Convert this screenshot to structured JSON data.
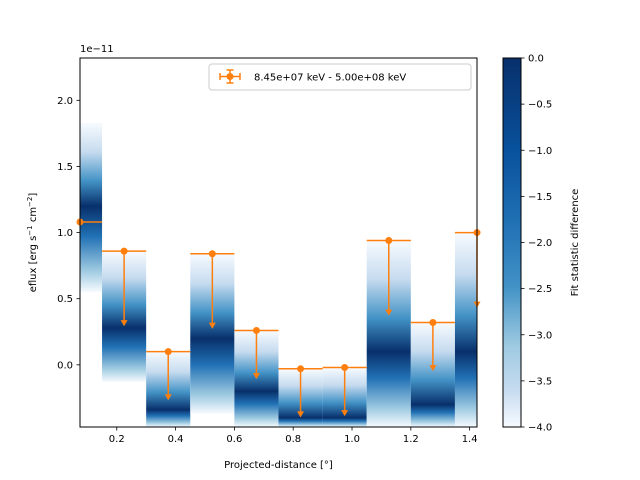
{
  "chart_data": {
    "type": "scatter",
    "subtype": "flux-profile-with-upper-limits",
    "scale_label": "1e−11",
    "xlabel": "Projected-distance [°]",
    "ylabel_prefix": "eflux [erg s",
    "ylabel_s_exp": "−1",
    "ylabel_mid": " cm",
    "ylabel_cm_exp": "−2",
    "ylabel_suffix": "]",
    "xlim": [
      0.075,
      1.425
    ],
    "ylim": [
      -0.47,
      2.32
    ],
    "x_ticks": [
      0.2,
      0.4,
      0.6,
      0.8,
      1.0,
      1.2,
      1.4
    ],
    "x_tick_labels": [
      "0.2",
      "0.4",
      "0.6",
      "0.8",
      "1.0",
      "1.2",
      "1.4"
    ],
    "y_ticks": [
      0.0,
      0.5,
      1.0,
      1.5,
      2.0
    ],
    "y_tick_labels": [
      "0.0",
      "0.5",
      "1.0",
      "1.5",
      "2.0"
    ],
    "legend": {
      "label": "8.45e+07 keV - 5.00e+08 keV",
      "location": "upper right",
      "color": "#ff7f0e"
    },
    "series": [
      {
        "name": "8.45e+07 keV - 5.00e+08 keV",
        "color": "#ff7f0e",
        "points": [
          {
            "x": 0.075,
            "x_lo": 0.0,
            "x_hi": 0.15,
            "y": 1.08,
            "ul": false
          },
          {
            "x": 0.225,
            "x_lo": 0.15,
            "x_hi": 0.3,
            "y": 0.86,
            "ul": true
          },
          {
            "x": 0.375,
            "x_lo": 0.3,
            "x_hi": 0.45,
            "y": 0.1,
            "ul": true
          },
          {
            "x": 0.525,
            "x_lo": 0.45,
            "x_hi": 0.6,
            "y": 0.84,
            "ul": true
          },
          {
            "x": 0.675,
            "x_lo": 0.6,
            "x_hi": 0.75,
            "y": 0.26,
            "ul": true
          },
          {
            "x": 0.825,
            "x_lo": 0.75,
            "x_hi": 0.9,
            "y": -0.03,
            "ul": true
          },
          {
            "x": 0.975,
            "x_lo": 0.9,
            "x_hi": 1.05,
            "y": -0.02,
            "ul": true
          },
          {
            "x": 1.125,
            "x_lo": 1.05,
            "x_hi": 1.2,
            "y": 0.94,
            "ul": true
          },
          {
            "x": 1.275,
            "x_lo": 1.2,
            "x_hi": 1.35,
            "y": 0.32,
            "ul": true
          },
          {
            "x": 1.425,
            "x_lo": 1.35,
            "x_hi": 1.5,
            "y": 1.0,
            "ul": true
          }
        ]
      }
    ],
    "likelihood_profile": {
      "colormap": "Blues",
      "bins": [
        {
          "x_lo": 0.075,
          "x_hi": 0.15,
          "y_top": 1.83,
          "y_bottom": 0.55,
          "y_best": 1.2
        },
        {
          "x_lo": 0.15,
          "x_hi": 0.3,
          "y_top": 0.86,
          "y_bottom": -0.13,
          "y_best": 0.28
        },
        {
          "x_lo": 0.3,
          "x_hi": 0.45,
          "y_top": 0.1,
          "y_bottom": -0.47,
          "y_best": -0.34
        },
        {
          "x_lo": 0.45,
          "x_hi": 0.6,
          "y_top": 0.84,
          "y_bottom": -0.37,
          "y_best": 0.2
        },
        {
          "x_lo": 0.6,
          "x_hi": 0.75,
          "y_top": 0.26,
          "y_bottom": -0.47,
          "y_best": -0.2
        },
        {
          "x_lo": 0.75,
          "x_hi": 0.9,
          "y_top": -0.03,
          "y_bottom": -0.47,
          "y_best": -0.4
        },
        {
          "x_lo": 0.9,
          "x_hi": 1.05,
          "y_top": -0.02,
          "y_bottom": -0.47,
          "y_best": -0.4
        },
        {
          "x_lo": 1.05,
          "x_hi": 1.2,
          "y_top": 0.94,
          "y_bottom": -0.47,
          "y_best": 0.1
        },
        {
          "x_lo": 1.2,
          "x_hi": 1.35,
          "y_top": 0.32,
          "y_bottom": -0.47,
          "y_best": -0.3
        },
        {
          "x_lo": 1.35,
          "x_hi": 1.425,
          "y_top": 1.0,
          "y_bottom": -0.47,
          "y_best": 0.1
        }
      ]
    },
    "colorbar": {
      "label": "Fit statistic difference",
      "range": [
        -4.0,
        0.0
      ],
      "ticks": [
        0.0,
        -0.5,
        -1.0,
        -1.5,
        -2.0,
        -2.5,
        -3.0,
        -3.5,
        -4.0
      ],
      "tick_labels": [
        "0.0",
        "−0.5",
        "−1.0",
        "−1.5",
        "−2.0",
        "−2.5",
        "−3.0",
        "−3.5",
        "−4.0"
      ],
      "colormap": "Blues_r"
    },
    "grid": false
  }
}
